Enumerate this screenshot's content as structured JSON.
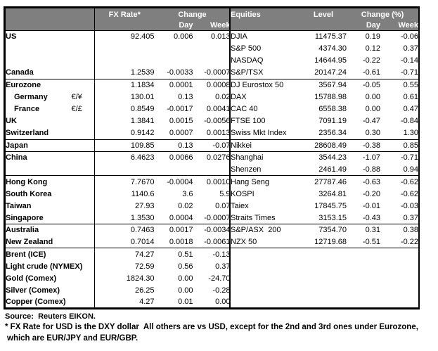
{
  "colors": {
    "header_bg": "#7f7f7f",
    "header_text": "#ffffff",
    "border": "#000000",
    "body_text": "#000000",
    "background": "#ffffff"
  },
  "fx_table": {
    "header": {
      "rate": "FX Rate*",
      "change": "Change",
      "day": "Day",
      "week": "Week"
    },
    "rows": [
      {
        "label": "US",
        "symbol": "",
        "rate": "92.405",
        "day": "0.006",
        "week": "0.013"
      },
      {
        "label": "",
        "symbol": "",
        "rate": "",
        "day": "",
        "week": ""
      },
      {
        "label": "",
        "symbol": "",
        "rate": "",
        "day": "",
        "week": ""
      },
      {
        "label": "Canada",
        "symbol": "",
        "rate": "1.2539",
        "day": "-0.0033",
        "week": "-0.0007",
        "rule": true
      },
      {
        "label": "Eurozone",
        "symbol": "",
        "rate": "1.1834",
        "day": "0.0001",
        "week": "0.0008"
      },
      {
        "label": "Germany",
        "symbol": "€/¥",
        "rate": "130.01",
        "day": "0.13",
        "week": "0.02",
        "indent": true
      },
      {
        "label": "France",
        "symbol": "€/£",
        "rate": "0.8549",
        "day": "-0.0017",
        "week": "0.0041",
        "indent": true
      },
      {
        "label": "UK",
        "symbol": "",
        "rate": "1.3841",
        "day": "0.0015",
        "week": "-0.0056"
      },
      {
        "label": "Switzerland",
        "symbol": "",
        "rate": "0.9142",
        "day": "0.0007",
        "week": "0.0013",
        "rule": true
      },
      {
        "label": "Japan",
        "symbol": "",
        "rate": "109.85",
        "day": "0.13",
        "week": "-0.07",
        "rule": true
      },
      {
        "label": "China",
        "symbol": "",
        "rate": "6.4623",
        "day": "0.0066",
        "week": "0.0276"
      },
      {
        "label": "",
        "symbol": "",
        "rate": "",
        "day": "",
        "week": "",
        "rule": true
      },
      {
        "label": "Hong Kong",
        "symbol": "",
        "rate": "7.7670",
        "day": "-0.0004",
        "week": "0.0010"
      },
      {
        "label": "South Korea",
        "symbol": "",
        "rate": "1140.6",
        "day": "3.6",
        "week": "5.9"
      },
      {
        "label": "Taiwan",
        "symbol": "",
        "rate": "27.93",
        "day": "0.02",
        "week": "0.07"
      },
      {
        "label": "Singapore",
        "symbol": "",
        "rate": "1.3530",
        "day": "0.0004",
        "week": "-0.0007",
        "rule": true
      },
      {
        "label": "Australia",
        "symbol": "",
        "rate": "0.7463",
        "day": "0.0017",
        "week": "-0.0034"
      },
      {
        "label": "New Zealand",
        "symbol": "",
        "rate": "0.7014",
        "day": "0.0018",
        "week": "-0.0061",
        "rule": true
      },
      {
        "label": "Brent (ICE)",
        "symbol": "",
        "rate": "74.27",
        "day": "0.51",
        "week": "-0.13"
      },
      {
        "label": "Light crude (NYMEX)",
        "symbol": "",
        "rate": "72.59",
        "day": "0.56",
        "week": "0.37"
      },
      {
        "label": "Gold (Comex)",
        "symbol": "",
        "rate": "1824.30",
        "day": "0.00",
        "week": "-24.70"
      },
      {
        "label": "Silver (Comex)",
        "symbol": "",
        "rate": "26.25",
        "day": "0.00",
        "week": "-0.28"
      },
      {
        "label": "Copper (Comex)",
        "symbol": "",
        "rate": "4.27",
        "day": "0.01",
        "week": "0.00"
      }
    ]
  },
  "equities_table": {
    "header": {
      "title": "Equities",
      "level": "Level",
      "change": "Change (%)",
      "day": "Day",
      "week": "Week"
    },
    "rows": [
      {
        "label": "DJIA",
        "level": "11475.37",
        "day": "0.19",
        "week": "-0.06"
      },
      {
        "label": "S&P 500",
        "level": "4374.30",
        "day": "0.12",
        "week": "0.37"
      },
      {
        "label": "NASDAQ",
        "level": "14644.95",
        "day": "-0.22",
        "week": "-0.14"
      },
      {
        "label": "S&P/TSX",
        "level": "20147.24",
        "day": "-0.61",
        "week": "-0.71",
        "rule": true
      },
      {
        "label": "DJ Eurostox 50",
        "level": "3567.94",
        "day": "-0.05",
        "week": "0.55"
      },
      {
        "label": "DAX",
        "level": "15788.98",
        "day": "0.00",
        "week": "0.61"
      },
      {
        "label": "CAC 40",
        "level": "6558.38",
        "day": "0.00",
        "week": "0.47"
      },
      {
        "label": "FTSE 100",
        "level": "7091.19",
        "day": "-0.47",
        "week": "-0.84"
      },
      {
        "label": "Swiss Mkt Index",
        "level": "2356.34",
        "day": "0.30",
        "week": "1.30",
        "rule": true
      },
      {
        "label": "Nikkei",
        "level": "28608.49",
        "day": "-0.38",
        "week": "0.85",
        "rule": true
      },
      {
        "label": "Shanghai",
        "level": "3544.23",
        "day": "-1.07",
        "week": "-0.71"
      },
      {
        "label": "Shenzen",
        "level": "2461.49",
        "day": "-0.88",
        "week": "0.94",
        "rule": true
      },
      {
        "label": "Hang Seng",
        "level": "27787.46",
        "day": "-0.63",
        "week": "-0.62"
      },
      {
        "label": "KOSPI",
        "level": "3264.81",
        "day": "-0.20",
        "week": "-0.62"
      },
      {
        "label": "Taiex",
        "level": "17845.75",
        "day": "-0.01",
        "week": "-0.03"
      },
      {
        "label": "Straits Times",
        "level": "3153.15",
        "day": "-0.43",
        "week": "0.37",
        "rule": true
      },
      {
        "label": "S&P/ASX  200",
        "level": "7354.70",
        "day": "0.31",
        "week": "0.38"
      },
      {
        "label": "NZX 50",
        "level": "12719.68",
        "day": "-0.51",
        "week": "-0.22",
        "rule": true
      },
      {
        "label": "",
        "level": "",
        "day": "",
        "week": ""
      },
      {
        "label": "",
        "level": "",
        "day": "",
        "week": ""
      },
      {
        "label": "",
        "level": "",
        "day": "",
        "week": ""
      },
      {
        "label": "",
        "level": "",
        "day": "",
        "week": ""
      },
      {
        "label": "",
        "level": "",
        "day": "",
        "week": ""
      }
    ]
  },
  "footer": {
    "source": "Source:  Reuters EIKON.",
    "note_line1": "* FX Rate for USD is the DXY dollar  All others are vs USD, except for the 2nd and 3rd ones under Eurozone,",
    "note_line2": "which are EUR/JPY and EUR/GBP."
  }
}
